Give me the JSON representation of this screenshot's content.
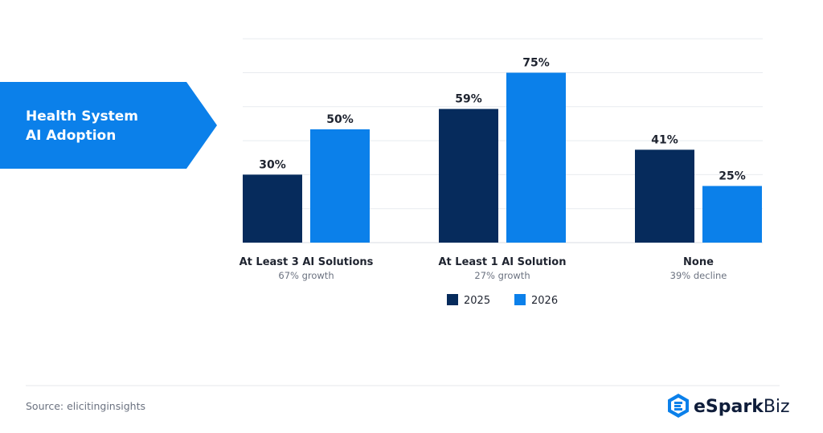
{
  "banner": {
    "line1": "Health System",
    "line2": "AI Adoption",
    "color": "#0b80ea"
  },
  "chart_data": {
    "type": "bar",
    "title": "Health System AI Adoption",
    "categories": [
      "At Least 3 AI Solutions",
      "At Least 1 AI Solution",
      "None"
    ],
    "category_notes": [
      "67% growth",
      "27% growth",
      "39% decline"
    ],
    "series": [
      {
        "name": "2025",
        "values": [
          30,
          59,
          41
        ],
        "color": "#062b5c"
      },
      {
        "name": "2026",
        "values": [
          50,
          75,
          25
        ],
        "color": "#0b80ea"
      }
    ],
    "value_labels": {
      "2025": [
        "30%",
        "59%",
        "41%"
      ],
      "2026": [
        "50%",
        "75%",
        "25%"
      ]
    },
    "ylim": [
      0,
      90
    ],
    "grid": true,
    "legend_position": "bottom"
  },
  "footer": {
    "source": "Source: elicitinginsights",
    "brand_bold": "eSpark",
    "brand_light": "Biz",
    "brand_icon": "espark-logo-icon"
  }
}
